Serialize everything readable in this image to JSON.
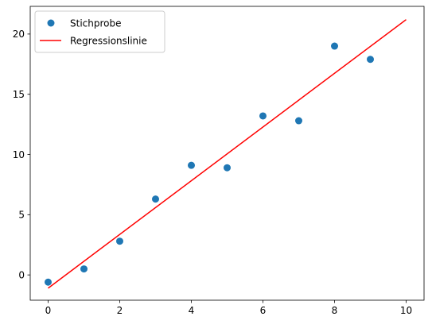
{
  "chart_data": {
    "type": "scatter",
    "title": "",
    "xlabel": "",
    "ylabel": "",
    "xlim": [
      -0.5,
      10.5
    ],
    "ylim": [
      -2.1,
      22.3
    ],
    "xticks": [
      0,
      2,
      4,
      6,
      8,
      10
    ],
    "yticks": [
      0,
      5,
      10,
      15,
      20
    ],
    "grid": false,
    "legend_position": "top-left",
    "series": [
      {
        "name": "Stichprobe",
        "kind": "scatter",
        "color": "#1f77b4",
        "x": [
          0,
          1,
          2,
          3,
          4,
          5,
          6,
          7,
          8,
          9
        ],
        "y": [
          -0.6,
          0.5,
          2.8,
          6.3,
          9.1,
          8.9,
          13.2,
          12.8,
          19.0,
          17.9
        ]
      },
      {
        "name": "Regressionslinie",
        "kind": "line",
        "color": "#ff0000",
        "x": [
          0,
          10
        ],
        "y": [
          -1.1,
          21.2
        ]
      }
    ]
  }
}
